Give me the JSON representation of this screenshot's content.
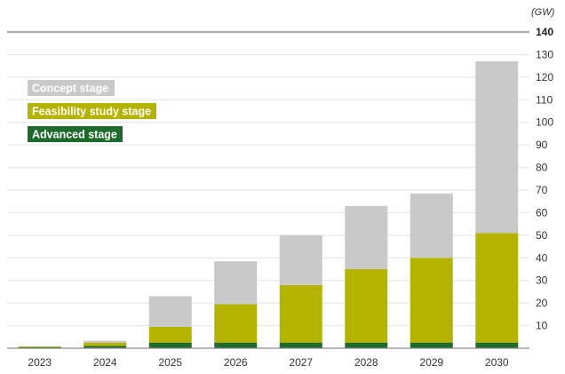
{
  "chart_data": {
    "type": "bar",
    "stacked": true,
    "unit_label": "(GW)",
    "categories": [
      "2023",
      "2024",
      "2025",
      "2026",
      "2027",
      "2028",
      "2029",
      "2030"
    ],
    "series": [
      {
        "name": "Advanced stage",
        "color": "#1e6b2e",
        "values": [
          0.5,
          1,
          2.5,
          2.5,
          2.5,
          2.5,
          2.5,
          2.5
        ]
      },
      {
        "name": "Feasibility study stage",
        "color": "#b4b400",
        "values": [
          0.3,
          1.5,
          7,
          17,
          25.5,
          32.5,
          37.5,
          48.5
        ]
      },
      {
        "name": "Concept stage",
        "color": "#c9c9c9",
        "values": [
          0,
          0.8,
          13.5,
          19,
          22,
          28,
          28.5,
          76
        ]
      }
    ],
    "legend_order": [
      "Concept stage",
      "Feasibility study stage",
      "Advanced stage"
    ],
    "legend_placement": "top-left",
    "ylim": [
      0,
      140
    ],
    "yticks": [
      10,
      20,
      30,
      40,
      50,
      60,
      70,
      80,
      90,
      100,
      110,
      120,
      130,
      140
    ],
    "y_axis_side": "right",
    "grid": true
  }
}
